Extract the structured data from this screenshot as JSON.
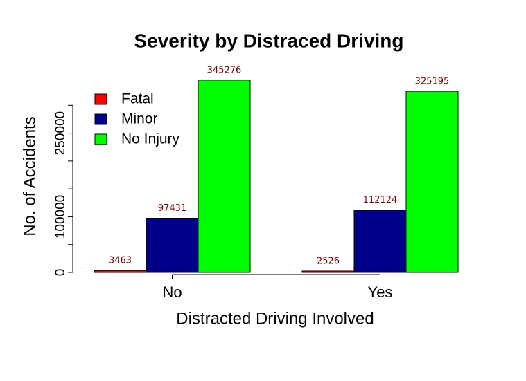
{
  "chart_data": {
    "type": "bar",
    "title": "Severity by Distraced Driving",
    "x_label": "Distracted Driving Involved",
    "y_label": "No. of Accidents",
    "categories": [
      "No",
      "Yes"
    ],
    "series": [
      {
        "name": "Fatal",
        "color": "#ff0000",
        "values": [
          3463,
          2526
        ]
      },
      {
        "name": "Minor",
        "color": "#00008b",
        "values": [
          97431,
          112124
        ]
      },
      {
        "name": "No Injury",
        "color": "#00ff00",
        "values": [
          345276,
          325195
        ]
      }
    ],
    "value_label_color": "#8b0000",
    "ylim": [
      0,
      360000
    ],
    "yticks": [
      0,
      {
        "value": 50000,
        "label": null
      },
      100000,
      {
        "value": 150000,
        "label": null
      },
      {
        "value": 200000,
        "label": null
      },
      250000,
      {
        "value": 300000,
        "label": null
      }
    ],
    "legend": "top-left"
  }
}
